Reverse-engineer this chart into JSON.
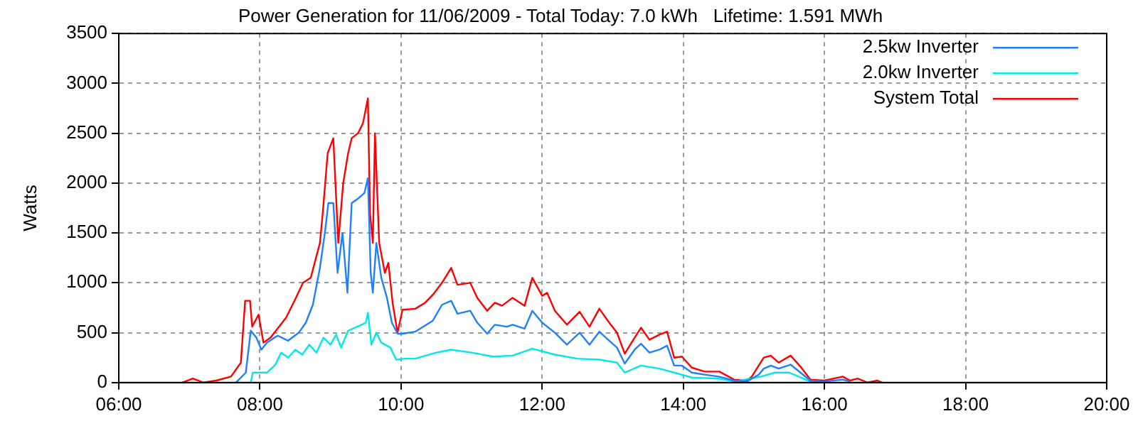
{
  "chart_data": {
    "type": "line",
    "title": "Power Generation for 11/06/2009 - Total Today: 7.0 kWh   Lifetime: 1.591 MWh",
    "ylabel": "Watts",
    "xlim": [
      6,
      20
    ],
    "xticks": [
      {
        "value": 6,
        "label": "06:00"
      },
      {
        "value": 8,
        "label": "08:00"
      },
      {
        "value": 10,
        "label": "10:00"
      },
      {
        "value": 12,
        "label": "12:00"
      },
      {
        "value": 14,
        "label": "14:00"
      },
      {
        "value": 16,
        "label": "16:00"
      },
      {
        "value": 18,
        "label": "18:00"
      },
      {
        "value": 20,
        "label": "20:00"
      }
    ],
    "ylim": [
      0,
      3500
    ],
    "yticks": [
      0,
      500,
      1000,
      1500,
      2000,
      2500,
      3000,
      3500
    ],
    "grid": true,
    "legend": "top right",
    "marker": "none",
    "line_style": "solid",
    "series": [
      {
        "name": "2.5kw Inverter",
        "color": "#1e80ff",
        "x": [
          7.66,
          7.8,
          7.87,
          7.95,
          8.02,
          8.1,
          8.25,
          8.4,
          8.55,
          8.65,
          8.75,
          8.85,
          8.92,
          8.97,
          9.04,
          9.1,
          9.17,
          9.24,
          9.3,
          9.4,
          9.48,
          9.53,
          9.57,
          9.6,
          9.65,
          9.72,
          9.8,
          9.87,
          9.95,
          10.02,
          10.2,
          10.45,
          10.58,
          10.71,
          10.8,
          10.98,
          11.08,
          11.22,
          11.33,
          11.5,
          11.58,
          11.75,
          11.86,
          12.0,
          12.18,
          12.35,
          12.53,
          12.67,
          12.81,
          12.95,
          13.06,
          13.17,
          13.31,
          13.4,
          13.52,
          13.66,
          13.77,
          13.87,
          13.98,
          14.12,
          14.3,
          14.5,
          14.72,
          14.9,
          15.07,
          15.14,
          15.24,
          15.35,
          15.52,
          15.66,
          15.8,
          16.0,
          16.26,
          16.36
        ],
        "values": [
          0,
          100,
          520,
          450,
          330,
          400,
          470,
          420,
          500,
          600,
          780,
          1150,
          1500,
          1800,
          1800,
          1100,
          1500,
          900,
          1800,
          1850,
          1900,
          2050,
          1100,
          900,
          1400,
          1050,
          850,
          600,
          490,
          490,
          510,
          620,
          780,
          820,
          690,
          720,
          600,
          490,
          580,
          560,
          580,
          540,
          720,
          600,
          500,
          380,
          500,
          380,
          510,
          420,
          350,
          190,
          330,
          390,
          300,
          330,
          370,
          170,
          170,
          100,
          80,
          60,
          20,
          10,
          80,
          140,
          170,
          140,
          180,
          100,
          20,
          10,
          30,
          10
        ]
      },
      {
        "name": "2.0kw Inverter",
        "color": "#00e8e8",
        "x": [
          7.87,
          7.9,
          8.1,
          8.22,
          8.3,
          8.4,
          8.5,
          8.6,
          8.7,
          8.8,
          8.9,
          9.0,
          9.08,
          9.15,
          9.25,
          9.38,
          9.5,
          9.53,
          9.58,
          9.65,
          9.72,
          9.85,
          9.93,
          10.05,
          10.2,
          10.5,
          10.71,
          11.0,
          11.3,
          11.58,
          11.86,
          12.18,
          12.5,
          12.81,
          13.06,
          13.17,
          13.4,
          13.66,
          13.87,
          14.12,
          14.5,
          14.72,
          15.1,
          15.3,
          15.5,
          15.8,
          16.0
        ],
        "values": [
          0,
          100,
          100,
          180,
          300,
          250,
          330,
          280,
          380,
          300,
          450,
          380,
          480,
          350,
          520,
          560,
          600,
          700,
          380,
          500,
          400,
          350,
          230,
          240,
          240,
          300,
          330,
          300,
          260,
          270,
          340,
          280,
          240,
          230,
          200,
          100,
          170,
          140,
          100,
          50,
          40,
          10,
          60,
          100,
          100,
          10,
          0
        ]
      },
      {
        "name": "System Total",
        "color": "#ff0000",
        "x": [
          6.9,
          7.05,
          7.2,
          7.38,
          7.59,
          7.73,
          7.79,
          7.86,
          7.89,
          7.98,
          8.05,
          8.15,
          8.26,
          8.37,
          8.51,
          8.61,
          8.72,
          8.85,
          8.89,
          8.96,
          9.04,
          9.11,
          9.18,
          9.25,
          9.3,
          9.39,
          9.46,
          9.53,
          9.56,
          9.6,
          9.63,
          9.69,
          9.77,
          9.82,
          9.88,
          9.95,
          10.02,
          10.2,
          10.34,
          10.45,
          10.58,
          10.71,
          10.8,
          10.98,
          11.08,
          11.22,
          11.33,
          11.43,
          11.58,
          11.75,
          11.86,
          12.0,
          12.07,
          12.18,
          12.35,
          12.53,
          12.67,
          12.81,
          12.95,
          13.06,
          13.17,
          13.31,
          13.4,
          13.52,
          13.66,
          13.77,
          13.87,
          13.98,
          14.12,
          14.3,
          14.51,
          14.72,
          14.9,
          14.97,
          15.14,
          15.24,
          15.35,
          15.52,
          15.66,
          15.8,
          16.0,
          16.26,
          16.36,
          16.47,
          16.61,
          16.75,
          16.82
        ],
        "values": [
          0,
          40,
          0,
          20,
          60,
          200,
          820,
          820,
          560,
          680,
          400,
          450,
          550,
          650,
          850,
          1000,
          1050,
          1400,
          1700,
          2300,
          2450,
          1400,
          2000,
          2300,
          2450,
          2500,
          2600,
          2850,
          1700,
          1400,
          2500,
          1400,
          1100,
          1200,
          800,
          500,
          730,
          740,
          800,
          880,
          1000,
          1150,
          980,
          1000,
          850,
          720,
          800,
          770,
          850,
          770,
          1050,
          870,
          900,
          720,
          580,
          710,
          560,
          740,
          600,
          500,
          290,
          450,
          550,
          430,
          480,
          510,
          250,
          260,
          150,
          110,
          110,
          30,
          20,
          60,
          250,
          270,
          200,
          270,
          160,
          30,
          20,
          60,
          20,
          40,
          0,
          20,
          0
        ]
      }
    ]
  }
}
